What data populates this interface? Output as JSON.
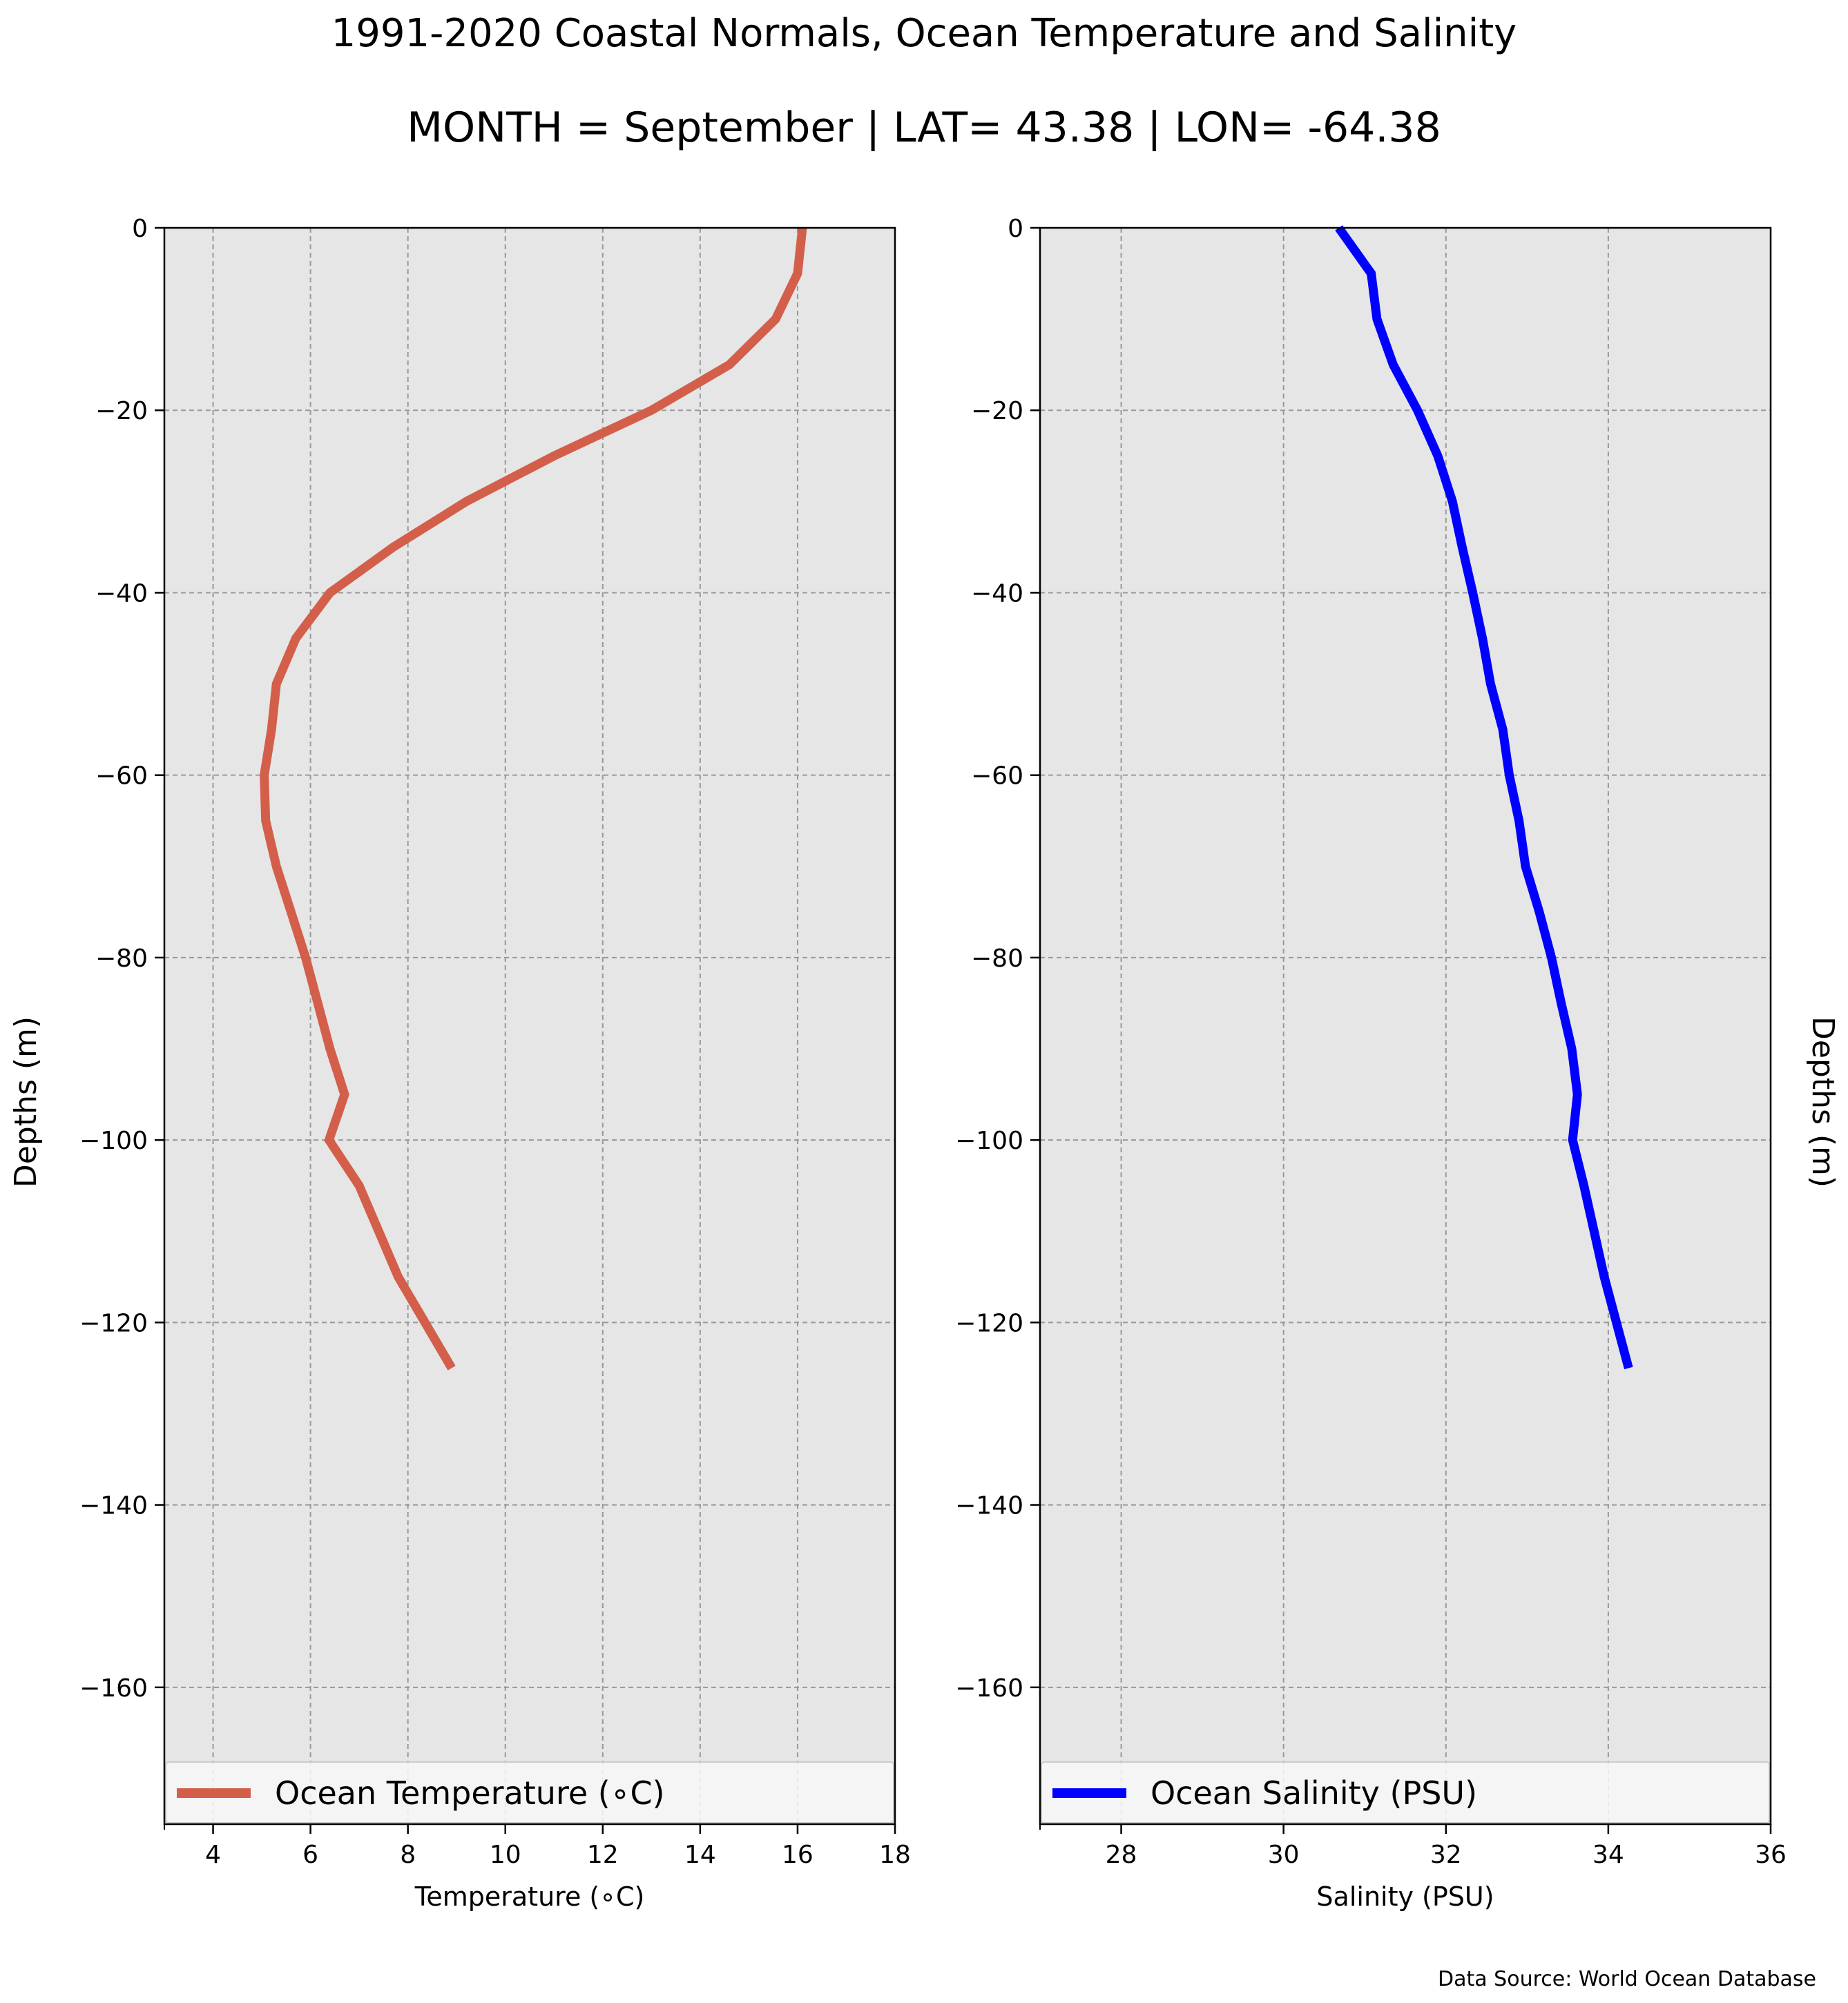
{
  "title": "1991-2020 Coastal Normals, Ocean Temperature and Salinity",
  "subtitle": "MONTH = September | LAT= 43.38 | LON= -64.38",
  "source": "Data Source: World Ocean Database",
  "colors": {
    "temperature": "#d35f4a",
    "salinity": "#0000ff",
    "plot_bg": "#e6e6e6",
    "grid": "#999999"
  },
  "chart_data": [
    {
      "type": "line",
      "xlabel": "Temperature ($^\\circ$C)",
      "xlabel_display": "Temperature (∘C)",
      "ylabel": "Depths (m)",
      "xlim": [
        3,
        18
      ],
      "ylim": [
        -175,
        0
      ],
      "xticks": [
        4,
        6,
        8,
        10,
        12,
        14,
        16,
        18
      ],
      "yticks": [
        0,
        -20,
        -40,
        -60,
        -80,
        -100,
        -120,
        -140,
        -160
      ],
      "ytick_labels": [
        "0",
        "−20",
        "−40",
        "−60",
        "−80",
        "−100",
        "−120",
        "−140",
        "−160"
      ],
      "grid": true,
      "legend_position": "bottom",
      "series": [
        {
          "name": "Ocean Temperature (∘C)",
          "x": [
            16.1,
            16.0,
            15.55,
            14.6,
            13.0,
            11.0,
            9.2,
            7.7,
            6.4,
            5.7,
            5.3,
            5.2,
            5.05,
            5.08,
            5.3,
            5.6,
            5.9,
            6.15,
            6.4,
            6.7,
            6.38,
            7.0,
            7.8,
            8.9
          ],
          "y": [
            0,
            -5,
            -10,
            -15,
            -20,
            -25,
            -30,
            -35,
            -40,
            -45,
            -50,
            -55,
            -60,
            -65,
            -70,
            -75,
            -80,
            -85,
            -90,
            -95,
            -100,
            -105,
            -115,
            -125
          ]
        }
      ]
    },
    {
      "type": "line",
      "xlabel": "Salinity (PSU)",
      "ylabel": "Depths (m)",
      "xlim": [
        27,
        36
      ],
      "ylim": [
        -175,
        0
      ],
      "xticks": [
        28,
        30,
        32,
        34,
        36
      ],
      "yticks": [
        0,
        -20,
        -40,
        -60,
        -80,
        -100,
        -120,
        -140,
        -160
      ],
      "ytick_labels": [
        "0",
        "−20",
        "−40",
        "−60",
        "−80",
        "−100",
        "−120",
        "−140",
        "−160"
      ],
      "grid": true,
      "legend_position": "bottom",
      "series": [
        {
          "name": "Ocean Salinity (PSU)",
          "x": [
            30.68,
            31.08,
            31.15,
            31.35,
            31.65,
            31.9,
            32.08,
            32.2,
            32.33,
            32.45,
            32.55,
            32.7,
            32.78,
            32.9,
            32.98,
            33.15,
            33.3,
            33.42,
            33.55,
            33.62,
            33.56,
            33.7,
            33.95,
            34.25
          ],
          "y": [
            0,
            -5,
            -10,
            -15,
            -20,
            -25,
            -30,
            -35,
            -40,
            -45,
            -50,
            -55,
            -60,
            -65,
            -70,
            -75,
            -80,
            -85,
            -90,
            -95,
            -100,
            -105,
            -115,
            -125
          ]
        }
      ]
    }
  ]
}
